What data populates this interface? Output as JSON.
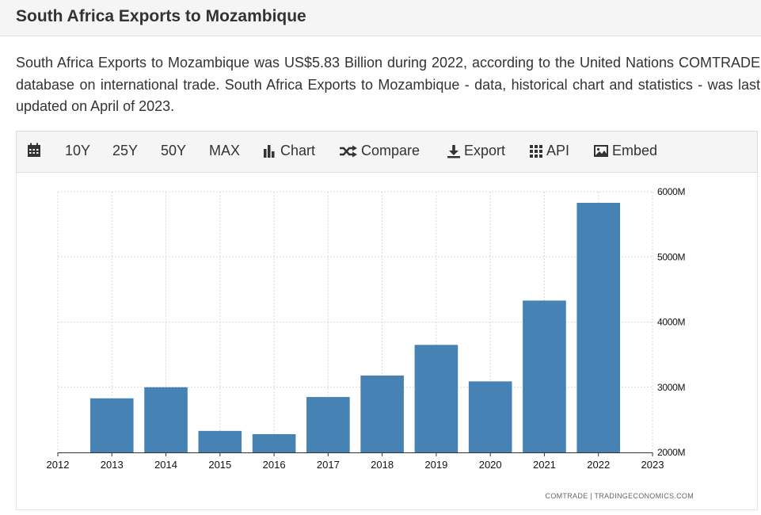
{
  "page": {
    "title": "South Africa Exports to Mozambique",
    "description": "South Africa Exports to Mozambique was US$5.83 Billion during 2022, according to the United Nations COMTRADE database on international trade. South Africa Exports to Mozambique - data, historical chart and statistics - was last updated on April of 2023."
  },
  "toolbar": {
    "calendar_icon": "calendar-icon",
    "range_10y": "10Y",
    "range_25y": "25Y",
    "range_50y": "50Y",
    "range_max": "MAX",
    "chart_label": "Chart",
    "compare_label": "Compare",
    "export_label": "Export",
    "api_label": "API",
    "embed_label": "Embed"
  },
  "source": "COMTRADE | TRADINGECONOMICS.COM",
  "colors": {
    "bar": "#4682b4",
    "grid": "#d9d9d9"
  },
  "chart_data": {
    "type": "bar",
    "categories": [
      "2013",
      "2014",
      "2015",
      "2016",
      "2017",
      "2018",
      "2019",
      "2020",
      "2021",
      "2022"
    ],
    "values": [
      2830,
      3000,
      2330,
      2280,
      2850,
      3180,
      3650,
      3090,
      4330,
      5830
    ],
    "x_ticks": [
      "2012",
      "2013",
      "2014",
      "2015",
      "2016",
      "2017",
      "2018",
      "2019",
      "2020",
      "2021",
      "2022",
      "2023"
    ],
    "y_ticks": [
      2000,
      3000,
      4000,
      5000,
      6000
    ],
    "y_tick_labels": [
      "2000M",
      "3000M",
      "4000M",
      "5000M",
      "6000M"
    ],
    "ylim": [
      2000,
      6000
    ],
    "xlim": [
      2012,
      2023
    ],
    "unit": "M",
    "grid": true,
    "title": "",
    "xlabel": "",
    "ylabel": ""
  }
}
